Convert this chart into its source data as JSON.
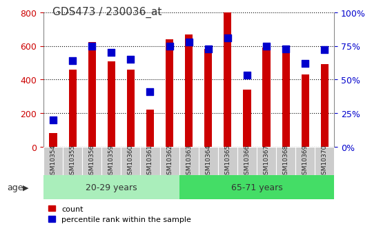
{
  "title": "GDS473 / 230036_at",
  "samples": [
    "GSM10354",
    "GSM10355",
    "GSM10356",
    "GSM10359",
    "GSM10360",
    "GSM10361",
    "GSM10362",
    "GSM10363",
    "GSM10364",
    "GSM10365",
    "GSM10366",
    "GSM10367",
    "GSM10368",
    "GSM10369",
    "GSM10370"
  ],
  "counts": [
    80,
    460,
    625,
    510,
    460,
    220,
    640,
    670,
    580,
    800,
    340,
    590,
    580,
    430,
    490
  ],
  "percentile_ranks": [
    20,
    64,
    75,
    70,
    65,
    41,
    75,
    78,
    73,
    81,
    53,
    75,
    73,
    62,
    72
  ],
  "group1_label": "20-29 years",
  "group2_label": "65-71 years",
  "group1_indices": [
    0,
    1,
    2,
    3,
    4,
    5,
    6
  ],
  "group2_indices": [
    7,
    8,
    9,
    10,
    11,
    12,
    13,
    14
  ],
  "bar_color": "#CC0000",
  "dot_color": "#0000CC",
  "group1_bg": "#AAEEBB",
  "group2_bg": "#44DD66",
  "axis_label_color_left": "#CC0000",
  "axis_label_color_right": "#0000CC",
  "ylim_left": [
    0,
    800
  ],
  "ylim_right": [
    0,
    100
  ],
  "yticks_left": [
    0,
    200,
    400,
    600,
    800
  ],
  "yticks_right": [
    0,
    25,
    50,
    75,
    100
  ],
  "yticklabels_right": [
    "0%",
    "25%",
    "50%",
    "75%",
    "100%"
  ],
  "bar_width": 0.4,
  "dot_size": 55,
  "age_label": "age",
  "legend_count": "count",
  "legend_pct": "percentile rank within the sample",
  "background_color": "#FFFFFF",
  "plot_bg_color": "#FFFFFF",
  "grid_color": "#000000",
  "tick_bg_color": "#CCCCCC"
}
